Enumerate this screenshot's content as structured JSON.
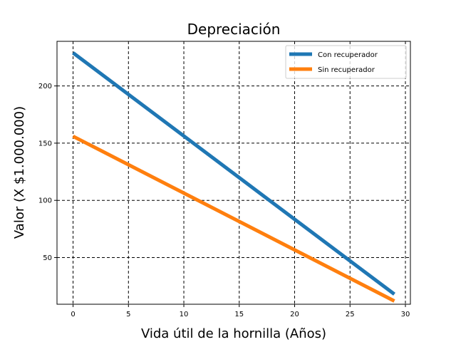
{
  "chart_data": {
    "type": "line",
    "title": "Depreciación",
    "xlabel": "Vida útil de la hornilla (Años)",
    "ylabel": "Valor (X $1.000.000)",
    "xlim": [
      -1.45,
      30.45
    ],
    "ylim": [
      9.2,
      239
    ],
    "x_ticks": [
      0,
      5,
      10,
      15,
      20,
      25,
      30
    ],
    "y_ticks": [
      50,
      100,
      150,
      200
    ],
    "grid": true,
    "legend_position": "top-right",
    "x": [
      0,
      29
    ],
    "series": [
      {
        "name": "Con recuperador",
        "color": "#1f77b4",
        "values": [
          229,
          18
        ]
      },
      {
        "name": "Sin recuperador",
        "color": "#ff7f0e",
        "values": [
          156,
          12
        ]
      }
    ]
  }
}
